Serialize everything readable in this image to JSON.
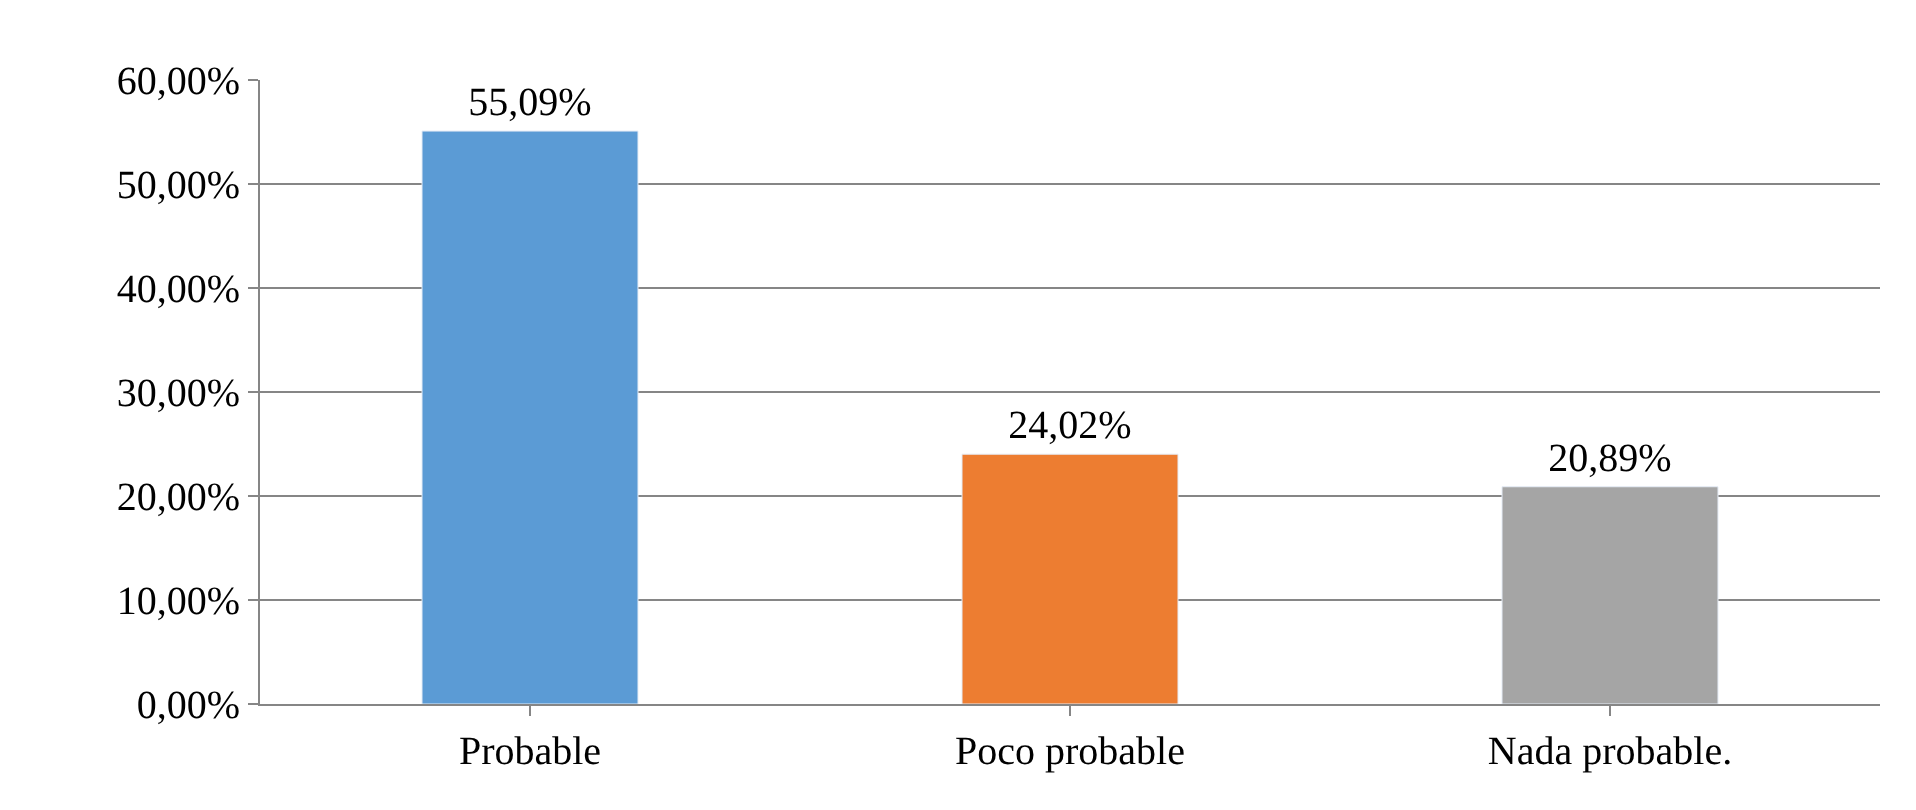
{
  "chart_data": {
    "type": "bar",
    "categories": [
      "Probable",
      "Poco probable",
      "Nada probable."
    ],
    "values": [
      55.09,
      24.02,
      20.89
    ],
    "colors": [
      "#5b9bd5",
      "#ed7d31",
      "#a5a5a5"
    ],
    "value_labels": [
      "55,09%",
      "24,02%",
      "20,89%"
    ],
    "ylim": [
      0,
      60
    ],
    "yticks": [
      {
        "value": 0,
        "label": "0,00%"
      },
      {
        "value": 10,
        "label": "10,00%"
      },
      {
        "value": 20,
        "label": "20,00%"
      },
      {
        "value": 30,
        "label": "30,00%"
      },
      {
        "value": 40,
        "label": "40,00%"
      },
      {
        "value": 50,
        "label": "50,00%"
      },
      {
        "value": 60,
        "label": "60,00%"
      }
    ],
    "grid": "y",
    "legend": false
  }
}
